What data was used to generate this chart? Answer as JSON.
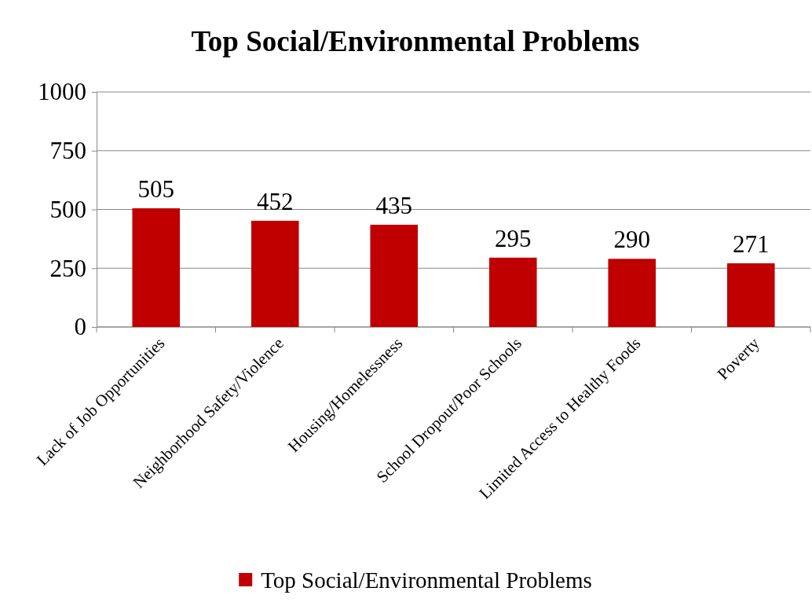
{
  "chart_data": {
    "type": "bar",
    "title": "Top Social/Environmental Problems",
    "categories": [
      "Lack of Job Opportunities",
      "Neighborhood Safety/Violence",
      "Housing/Homelessness",
      "School Dropout/Poor Schools",
      "Limited Access to Healthy Foods",
      "Poverty"
    ],
    "series": [
      {
        "name": "Top Social/Environmental Problems",
        "color": "#c00000",
        "values": [
          505,
          452,
          435,
          295,
          290,
          271
        ]
      }
    ],
    "ylim": [
      0,
      1000
    ],
    "yticks": [
      0,
      250,
      500,
      750,
      1000
    ],
    "grid": "y",
    "legend": "bottom",
    "data_labels": true
  }
}
